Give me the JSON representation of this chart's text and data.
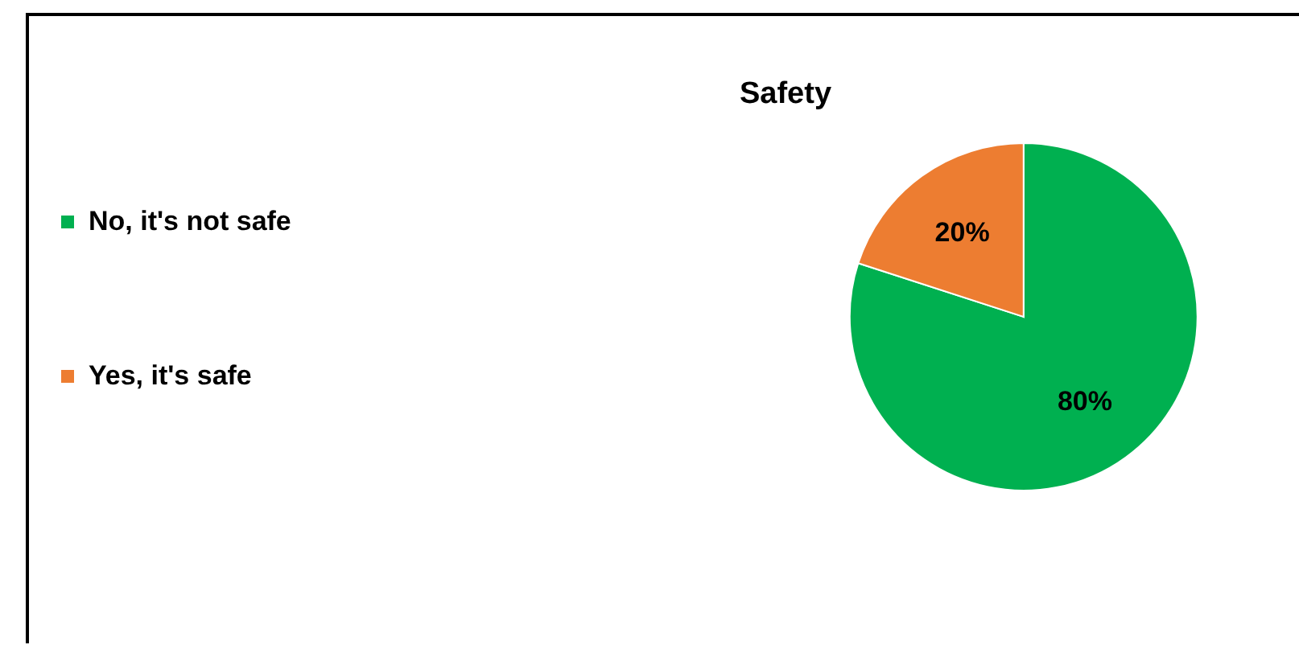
{
  "chart_data": {
    "type": "pie",
    "title": "Safety",
    "categories": [
      "No, it's not safe",
      "Yes, it's safe"
    ],
    "values": [
      80,
      20
    ],
    "colors": [
      "#00b050",
      "#ed7d31"
    ],
    "value_labels": [
      "80%",
      "20%"
    ],
    "legend": "left"
  }
}
